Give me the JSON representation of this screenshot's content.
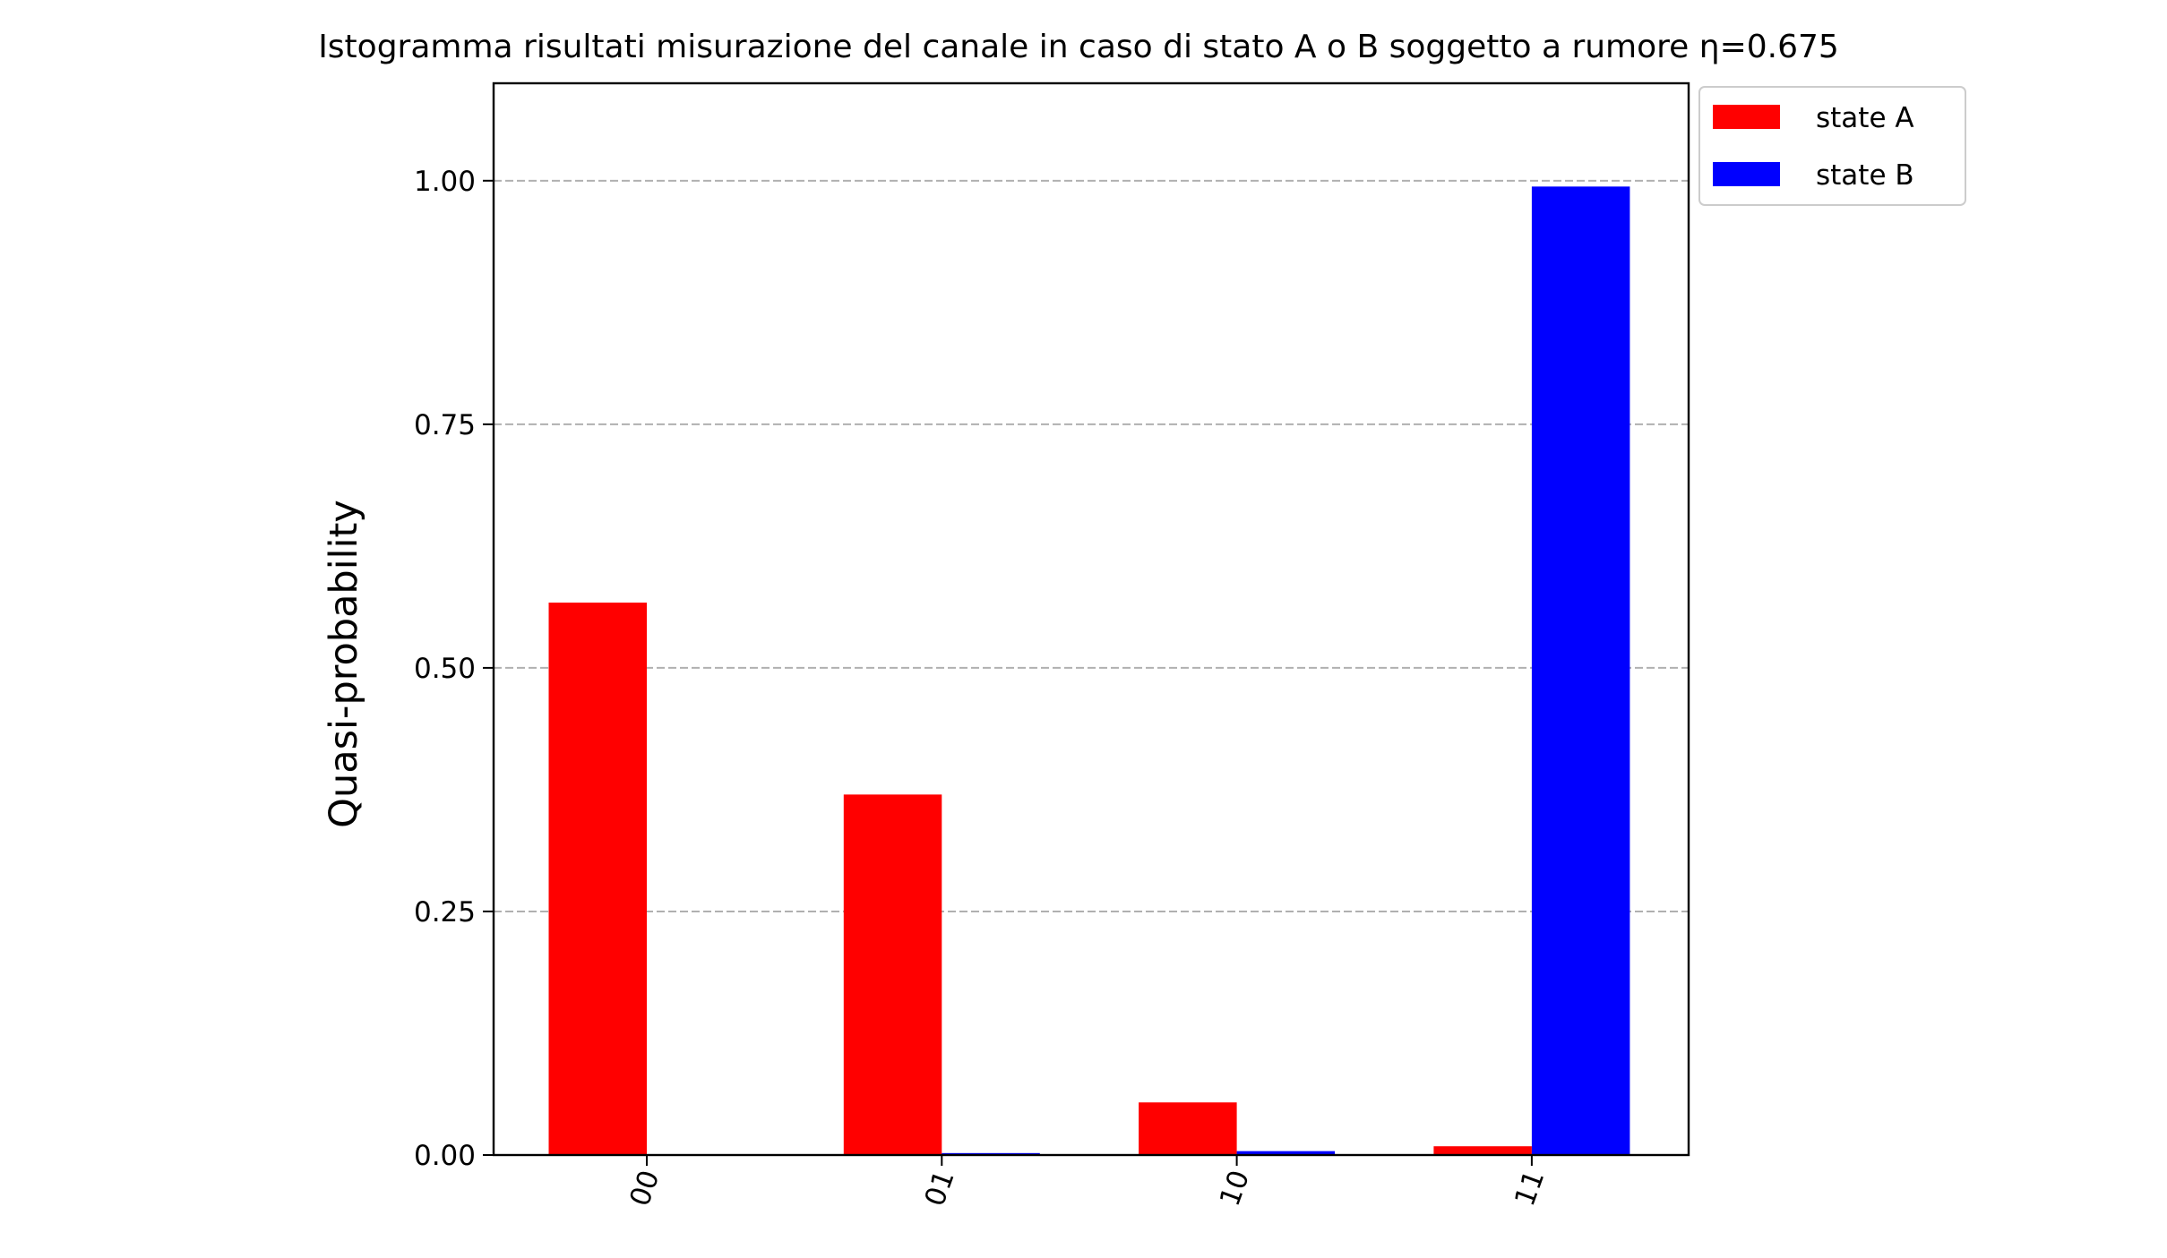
{
  "chart_data": {
    "type": "bar",
    "title": "Istogramma risultati misurazione del canale in caso di stato A o B soggetto a rumore η=0.675",
    "xlabel": "",
    "ylabel": "Quasi-probability",
    "categories": [
      "00",
      "01",
      "10",
      "11"
    ],
    "series": [
      {
        "name": "state A",
        "color": "#ff0000",
        "values": [
          0.567,
          0.37,
          0.054,
          0.009
        ]
      },
      {
        "name": "state B",
        "color": "#0000ff",
        "values": [
          0.0,
          0.002,
          0.004,
          0.994
        ]
      }
    ],
    "ylim": [
      0,
      1.1
    ],
    "yticks": [
      0.0,
      0.25,
      0.5,
      0.75,
      1.0
    ],
    "ytick_labels": [
      "0.00",
      "0.25",
      "0.50",
      "0.75",
      "1.00"
    ],
    "xtick_rotation_deg": -70,
    "grid": {
      "y": true,
      "x": false,
      "style": "dashed",
      "color": "#b0b0b0"
    },
    "legend": {
      "placement": "outside-top-right"
    }
  }
}
